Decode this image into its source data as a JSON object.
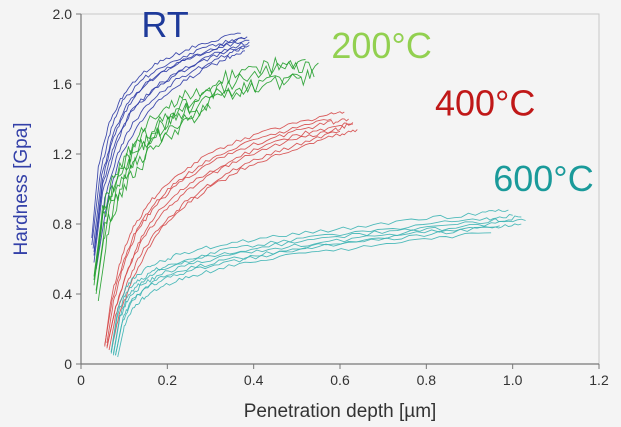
{
  "chart_data": {
    "type": "line",
    "title": "",
    "xlabel": "Penetration depth [µm]",
    "ylabel": "Hardness [Gpa]",
    "xlim": [
      0,
      1.2
    ],
    "ylim": [
      0,
      2.0
    ],
    "x_ticks": [
      0,
      0.2,
      0.4,
      0.6,
      0.8,
      1.0,
      1.2
    ],
    "x_tick_labels": [
      "0",
      "0.2",
      "0.4",
      "0.6",
      "0.8",
      "1.0",
      "1.2"
    ],
    "y_ticks": [
      0,
      0.4,
      0.8,
      1.2,
      1.6,
      2.0
    ],
    "y_tick_labels": [
      "0",
      "0.4",
      "0.8",
      "1.2",
      "1.6",
      "2.0"
    ],
    "grid": false,
    "series": [
      {
        "name": "RT",
        "color": "#2c3aa6",
        "label_color": "#1e3a9a",
        "label_at": [
          0.14,
          1.87
        ],
        "curves": [
          {
            "x": [
              0.03,
              0.05,
              0.08,
              0.12,
              0.17,
              0.22,
              0.28,
              0.34,
              0.39
            ],
            "y": [
              0.62,
              1.02,
              1.28,
              1.46,
              1.58,
              1.66,
              1.74,
              1.8,
              1.84
            ]
          },
          {
            "x": [
              0.025,
              0.045,
              0.07,
              0.1,
              0.15,
              0.2,
              0.26,
              0.32,
              0.38
            ],
            "y": [
              0.68,
              1.1,
              1.35,
              1.52,
              1.64,
              1.72,
              1.78,
              1.83,
              1.86
            ]
          },
          {
            "x": [
              0.03,
              0.05,
              0.08,
              0.11,
              0.16,
              0.21,
              0.27,
              0.33,
              0.39
            ],
            "y": [
              0.58,
              0.98,
              1.24,
              1.42,
              1.55,
              1.64,
              1.72,
              1.78,
              1.82
            ]
          },
          {
            "x": [
              0.035,
              0.055,
              0.085,
              0.12,
              0.17,
              0.22,
              0.28,
              0.34,
              0.38
            ],
            "y": [
              0.56,
              0.94,
              1.2,
              1.38,
              1.52,
              1.62,
              1.7,
              1.77,
              1.81
            ]
          },
          {
            "x": [
              0.025,
              0.04,
              0.065,
              0.1,
              0.14,
              0.19,
              0.25,
              0.31,
              0.37
            ],
            "y": [
              0.72,
              1.12,
              1.38,
              1.55,
              1.66,
              1.74,
              1.8,
              1.85,
              1.89
            ]
          },
          {
            "x": [
              0.03,
              0.05,
              0.075,
              0.11,
              0.15,
              0.2,
              0.26,
              0.32,
              0.39
            ],
            "y": [
              0.64,
              1.05,
              1.3,
              1.48,
              1.6,
              1.69,
              1.76,
              1.81,
              1.85
            ]
          },
          {
            "x": [
              0.035,
              0.06,
              0.09,
              0.13,
              0.18,
              0.23,
              0.29,
              0.34,
              0.38
            ],
            "y": [
              0.54,
              0.92,
              1.18,
              1.36,
              1.5,
              1.6,
              1.69,
              1.75,
              1.79
            ]
          },
          {
            "x": [
              0.028,
              0.048,
              0.075,
              0.11,
              0.16,
              0.21,
              0.27,
              0.33,
              0.385
            ],
            "y": [
              0.66,
              1.07,
              1.32,
              1.5,
              1.62,
              1.7,
              1.77,
              1.82,
              1.87
            ]
          }
        ]
      },
      {
        "name": "200°C",
        "color": "#22a02c",
        "label_color": "#92d050",
        "label_at": [
          0.58,
          1.75
        ],
        "curves": [
          {
            "x": [
              0.03,
              0.05,
              0.08,
              0.12,
              0.17,
              0.22,
              0.28,
              0.35,
              0.42,
              0.5,
              0.54
            ],
            "y": [
              0.45,
              0.82,
              1.05,
              1.2,
              1.33,
              1.42,
              1.5,
              1.56,
              1.6,
              1.63,
              1.64
            ]
          },
          {
            "x": [
              0.035,
              0.055,
              0.09,
              0.13,
              0.18,
              0.23,
              0.29,
              0.36,
              0.43,
              0.51
            ],
            "y": [
              0.4,
              0.76,
              1.0,
              1.16,
              1.3,
              1.4,
              1.48,
              1.55,
              1.6,
              1.64
            ]
          },
          {
            "x": [
              0.03,
              0.05,
              0.085,
              0.125,
              0.17,
              0.22,
              0.28,
              0.35,
              0.42,
              0.49,
              0.55
            ],
            "y": [
              0.48,
              0.85,
              1.08,
              1.24,
              1.36,
              1.46,
              1.54,
              1.6,
              1.66,
              1.7,
              1.72
            ]
          },
          {
            "x": [
              0.04,
              0.06,
              0.09,
              0.13,
              0.18,
              0.24,
              0.3
            ],
            "y": [
              0.36,
              0.7,
              0.96,
              1.12,
              1.26,
              1.38,
              1.46
            ]
          },
          {
            "x": [
              0.035,
              0.055,
              0.085,
              0.12,
              0.17,
              0.22,
              0.27
            ],
            "y": [
              0.42,
              0.78,
              1.02,
              1.18,
              1.32,
              1.42,
              1.5
            ]
          },
          {
            "x": [
              0.03,
              0.05,
              0.08,
              0.12,
              0.16,
              0.21,
              0.26,
              0.32,
              0.38,
              0.45,
              0.52
            ],
            "y": [
              0.5,
              0.88,
              1.1,
              1.26,
              1.38,
              1.48,
              1.56,
              1.62,
              1.67,
              1.71,
              1.74
            ]
          }
        ]
      },
      {
        "name": "400°C",
        "color": "#d64a4a",
        "label_color": "#c01818",
        "label_at": [
          0.82,
          1.42
        ],
        "curves": [
          {
            "x": [
              0.06,
              0.075,
              0.1,
              0.13,
              0.17,
              0.22,
              0.28,
              0.35,
              0.43,
              0.51,
              0.58,
              0.62
            ],
            "y": [
              0.12,
              0.35,
              0.58,
              0.76,
              0.9,
              1.02,
              1.12,
              1.21,
              1.28,
              1.34,
              1.38,
              1.4
            ]
          },
          {
            "x": [
              0.055,
              0.07,
              0.095,
              0.125,
              0.165,
              0.21,
              0.27,
              0.34,
              0.42,
              0.5,
              0.57,
              0.61
            ],
            "y": [
              0.1,
              0.38,
              0.62,
              0.8,
              0.94,
              1.06,
              1.16,
              1.25,
              1.32,
              1.38,
              1.42,
              1.44
            ]
          },
          {
            "x": [
              0.06,
              0.078,
              0.105,
              0.14,
              0.18,
              0.23,
              0.29,
              0.36,
              0.44,
              0.52,
              0.59,
              0.63
            ],
            "y": [
              0.09,
              0.3,
              0.52,
              0.7,
              0.84,
              0.96,
              1.07,
              1.16,
              1.24,
              1.3,
              1.34,
              1.37
            ]
          },
          {
            "x": [
              0.065,
              0.08,
              0.11,
              0.145,
              0.19,
              0.24,
              0.3,
              0.37,
              0.45,
              0.53,
              0.6
            ],
            "y": [
              0.08,
              0.27,
              0.48,
              0.66,
              0.8,
              0.92,
              1.03,
              1.13,
              1.21,
              1.28,
              1.33
            ]
          },
          {
            "x": [
              0.055,
              0.072,
              0.1,
              0.13,
              0.17,
              0.22,
              0.28,
              0.35,
              0.43,
              0.51,
              0.58
            ],
            "y": [
              0.11,
              0.36,
              0.6,
              0.78,
              0.92,
              1.04,
              1.14,
              1.23,
              1.3,
              1.36,
              1.4
            ]
          },
          {
            "x": [
              0.06,
              0.08,
              0.11,
              0.14,
              0.18,
              0.23,
              0.29,
              0.36,
              0.44,
              0.52,
              0.59,
              0.63
            ],
            "y": [
              0.1,
              0.32,
              0.55,
              0.73,
              0.87,
              0.99,
              1.09,
              1.18,
              1.26,
              1.32,
              1.36,
              1.38
            ]
          },
          {
            "x": [
              0.07,
              0.085,
              0.115,
              0.15,
              0.19,
              0.24,
              0.3,
              0.37,
              0.45,
              0.53,
              0.6,
              0.64
            ],
            "y": [
              0.07,
              0.25,
              0.46,
              0.64,
              0.78,
              0.9,
              1.01,
              1.11,
              1.19,
              1.26,
              1.31,
              1.34
            ]
          }
        ]
      },
      {
        "name": "600°C",
        "color": "#3cb4b4",
        "label_color": "#1a9a9a",
        "label_at": [
          0.955,
          0.99
        ],
        "curves": [
          {
            "x": [
              0.075,
              0.09,
              0.11,
              0.14,
              0.18,
              0.24,
              0.32,
              0.42,
              0.54,
              0.68,
              0.82,
              0.95,
              1.03
            ],
            "y": [
              0.05,
              0.26,
              0.38,
              0.45,
              0.51,
              0.56,
              0.61,
              0.65,
              0.69,
              0.73,
              0.77,
              0.8,
              0.82
            ]
          },
          {
            "x": [
              0.07,
              0.085,
              0.105,
              0.135,
              0.175,
              0.23,
              0.31,
              0.41,
              0.53,
              0.67,
              0.81,
              0.94,
              1.0
            ],
            "y": [
              0.06,
              0.29,
              0.41,
              0.48,
              0.54,
              0.59,
              0.64,
              0.68,
              0.72,
              0.76,
              0.8,
              0.83,
              0.85
            ]
          },
          {
            "x": [
              0.08,
              0.095,
              0.115,
              0.145,
              0.185,
              0.245,
              0.33,
              0.43,
              0.55,
              0.69,
              0.83,
              0.96,
              1.02
            ],
            "y": [
              0.05,
              0.23,
              0.35,
              0.42,
              0.48,
              0.53,
              0.58,
              0.62,
              0.67,
              0.71,
              0.75,
              0.78,
              0.8
            ]
          },
          {
            "x": [
              0.07,
              0.085,
              0.105,
              0.13,
              0.17,
              0.22,
              0.3,
              0.4,
              0.52,
              0.66,
              0.8,
              0.93,
              0.99
            ],
            "y": [
              0.07,
              0.31,
              0.44,
              0.51,
              0.57,
              0.62,
              0.67,
              0.71,
              0.75,
              0.79,
              0.83,
              0.86,
              0.88
            ]
          },
          {
            "x": [
              0.085,
              0.1,
              0.12,
              0.15,
              0.19,
              0.25,
              0.33,
              0.43,
              0.55,
              0.69,
              0.83,
              0.95
            ],
            "y": [
              0.04,
              0.21,
              0.32,
              0.39,
              0.45,
              0.5,
              0.55,
              0.6,
              0.64,
              0.68,
              0.72,
              0.75
            ]
          },
          {
            "x": [
              0.075,
              0.09,
              0.11,
              0.14,
              0.18,
              0.24,
              0.32,
              0.42,
              0.54,
              0.68,
              0.82,
              0.96,
              1.02
            ],
            "y": [
              0.06,
              0.27,
              0.4,
              0.47,
              0.53,
              0.58,
              0.63,
              0.67,
              0.71,
              0.75,
              0.79,
              0.82,
              0.84
            ]
          },
          {
            "x": [
              0.08,
              0.095,
              0.115,
              0.145,
              0.185,
              0.245,
              0.33,
              0.43,
              0.55,
              0.69,
              0.83,
              0.97
            ],
            "y": [
              0.05,
              0.24,
              0.36,
              0.43,
              0.49,
              0.54,
              0.59,
              0.63,
              0.68,
              0.72,
              0.76,
              0.79
            ]
          }
        ]
      }
    ]
  }
}
